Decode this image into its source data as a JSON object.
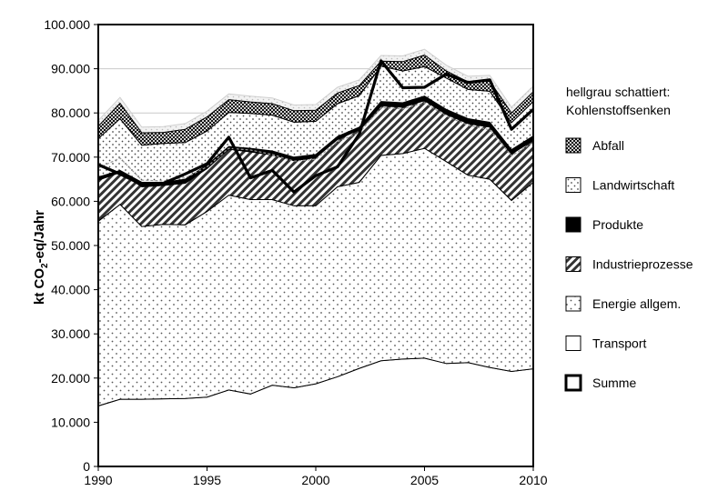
{
  "chart_data": {
    "type": "area",
    "title": "",
    "xlabel": "",
    "ylabel": {
      "main": "kt CO",
      "sub": "2",
      "tail": "-eq/Jahr"
    },
    "xlim": [
      1990,
      2010
    ],
    "ylim": [
      0,
      100000
    ],
    "xticks": [
      1990,
      1995,
      2000,
      2005,
      2010
    ],
    "yticks": [
      {
        "v": 0,
        "label": "0"
      },
      {
        "v": 10000,
        "label": "10.000"
      },
      {
        "v": 20000,
        "label": "20.000"
      },
      {
        "v": 30000,
        "label": "30.000"
      },
      {
        "v": 40000,
        "label": "40.000"
      },
      {
        "v": 50000,
        "label": "50.000"
      },
      {
        "v": 60000,
        "label": "60.000"
      },
      {
        "v": 70000,
        "label": "70.000"
      },
      {
        "v": 80000,
        "label": "80.000"
      },
      {
        "v": 90000,
        "label": "90.000"
      },
      {
        "v": 100000,
        "label": "100.000"
      }
    ],
    "years": [
      1990,
      1991,
      1992,
      1993,
      1994,
      1995,
      1996,
      1997,
      1998,
      1999,
      2000,
      2001,
      2002,
      2003,
      2004,
      2005,
      2006,
      2007,
      2008,
      2009,
      2010
    ],
    "cumulative_tops": {
      "Transport": [
        13700,
        15200,
        15200,
        15300,
        15400,
        15700,
        17300,
        16400,
        18400,
        17800,
        18700,
        20300,
        22200,
        23900,
        24300,
        24500,
        23300,
        23500,
        22400,
        21500,
        22100
      ],
      "Energie allgem.": [
        55500,
        59300,
        54300,
        54800,
        54700,
        57700,
        61400,
        60400,
        60400,
        59000,
        59000,
        63300,
        64300,
        70400,
        70800,
        72000,
        69000,
        65900,
        65000,
        60200,
        64300
      ],
      "Industrieprozesse": [
        64800,
        66500,
        63300,
        63600,
        64100,
        67400,
        71800,
        71200,
        70500,
        69200,
        69900,
        74000,
        76200,
        81600,
        81300,
        82800,
        79700,
        77600,
        76800,
        70700,
        73800
      ],
      "Produkte": [
        65500,
        67000,
        64300,
        64300,
        65000,
        68200,
        72400,
        72000,
        71400,
        70000,
        70600,
        74700,
        76800,
        82600,
        82300,
        83800,
        80800,
        78700,
        77900,
        71700,
        74800
      ],
      "Landwirtschaft": [
        74200,
        78700,
        72700,
        73100,
        73300,
        75900,
        80100,
        79900,
        79500,
        77900,
        78100,
        82100,
        83900,
        90600,
        89500,
        90500,
        87900,
        85300,
        84900,
        77800,
        82600
      ],
      "Abfall": [
        77000,
        82200,
        75500,
        75600,
        76300,
        79100,
        83000,
        82500,
        82100,
        80500,
        80600,
        84500,
        86200,
        91700,
        91600,
        93100,
        89500,
        87000,
        87200,
        80000,
        84800
      ]
    },
    "summe": [
      68300,
      66200,
      63800,
      64100,
      66200,
      68500,
      74500,
      65300,
      67000,
      62100,
      65800,
      67800,
      75200,
      91800,
      85700,
      85800,
      88800,
      86900,
      87500,
      76300,
      80800
    ],
    "sinks_line": [
      67500,
      69800,
      64800,
      64600,
      65300,
      67800,
      72000,
      71600,
      70600,
      69100,
      69500,
      73500,
      75500,
      81200,
      80900,
      82300,
      79300,
      77200,
      76200,
      70300,
      73300
    ],
    "series": [
      {
        "name": "Transport",
        "fill": "plain"
      },
      {
        "name": "Energie allgem.",
        "fill": "dots"
      },
      {
        "name": "Industrieprozesse",
        "fill": "diag"
      },
      {
        "name": "Produkte",
        "fill": "solid"
      },
      {
        "name": "Landwirtschaft",
        "fill": "dots2"
      },
      {
        "name": "Abfall",
        "fill": "check"
      }
    ],
    "legend": {
      "note_line1": "hellgrau schattiert:",
      "note_line2": "Kohlenstoffsenken",
      "entries": [
        {
          "label": "Abfall",
          "fill": "check"
        },
        {
          "label": "Landwirtschaft",
          "fill": "dots2"
        },
        {
          "label": "Produkte",
          "fill": "solid"
        },
        {
          "label": "Industrieprozesse",
          "fill": "diag"
        },
        {
          "label": "Energie allgem.",
          "fill": "dots"
        },
        {
          "label": "Transport",
          "fill": "plain"
        },
        {
          "label": "Summe",
          "fill": "summe"
        }
      ]
    }
  }
}
